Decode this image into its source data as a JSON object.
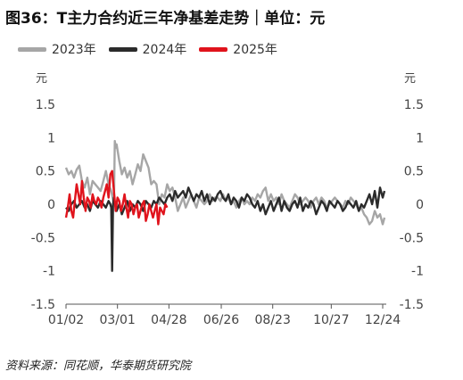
{
  "title": "图36：T主力合约近三年净基差走势｜单位：元",
  "source": "资料来源：同花顺，华泰期货研究院",
  "chart_data": {
    "type": "line",
    "y_unit_left": "元",
    "y_unit_right": "元",
    "ylim": [
      -1.5,
      1.5
    ],
    "y_ticks": [
      "1.5",
      "1",
      "0.5",
      "0",
      "-0.5",
      "-1",
      "-1.5"
    ],
    "y_tick_values": [
      1.5,
      1,
      0.5,
      0,
      -0.5,
      -1,
      -1.5
    ],
    "x_ticks": [
      "01/02",
      "03/01",
      "04/28",
      "06/26",
      "08/23",
      "10/27",
      "12/24"
    ],
    "x_tick_days": [
      0,
      58,
      116,
      175,
      233,
      299,
      357
    ],
    "x_range_days": [
      0,
      359
    ],
    "grid": false,
    "legend_position": "top-left",
    "series": [
      {
        "name": "2023年",
        "color": "#a6a6a6",
        "days": [
          0,
          3,
          6,
          9,
          12,
          15,
          18,
          21,
          24,
          27,
          30,
          33,
          36,
          39,
          42,
          45,
          48,
          51,
          54,
          55,
          56,
          57,
          60,
          63,
          66,
          69,
          72,
          75,
          78,
          81,
          84,
          87,
          90,
          93,
          96,
          99,
          102,
          105,
          108,
          111,
          114,
          117,
          120,
          123,
          126,
          129,
          132,
          135,
          138,
          141,
          144,
          147,
          150,
          153,
          156,
          159,
          162,
          165,
          168,
          171,
          174,
          177,
          180,
          183,
          186,
          189,
          192,
          195,
          198,
          201,
          204,
          207,
          210,
          213,
          216,
          219,
          222,
          225,
          228,
          231,
          234,
          237,
          240,
          243,
          246,
          249,
          252,
          255,
          258,
          261,
          264,
          267,
          270,
          273,
          276,
          279,
          282,
          285,
          288,
          291,
          294,
          297,
          300,
          303,
          306,
          309,
          312,
          315,
          318,
          321,
          324,
          327,
          330,
          333,
          336,
          339,
          342,
          345,
          348,
          351,
          354,
          357,
          359
        ],
        "values": [
          0.55,
          0.45,
          0.5,
          0.4,
          0.52,
          0.58,
          0.35,
          0.25,
          0.4,
          0.15,
          0.35,
          0.3,
          0.25,
          0.2,
          0.35,
          0.5,
          0.3,
          0.2,
          0.0,
          0.95,
          0.85,
          0.9,
          0.65,
          0.45,
          0.55,
          0.4,
          0.5,
          0.3,
          0.45,
          0.6,
          0.5,
          0.75,
          0.65,
          0.55,
          0.3,
          0.35,
          0.3,
          0.0,
          0.15,
          0.1,
          0.3,
          0.2,
          0.25,
          0.1,
          -0.1,
          0.0,
          0.1,
          -0.05,
          0.05,
          0.15,
          0.05,
          -0.05,
          0.1,
          0.05,
          0.0,
          0.05,
          0.15,
          0.05,
          0.1,
          0.1,
          0.05,
          0.15,
          0.05,
          0.1,
          0.0,
          0.05,
          -0.05,
          0.05,
          0.1,
          0.0,
          0.05,
          0.0,
          0.1,
          0.05,
          0.15,
          0.1,
          0.2,
          0.25,
          0.05,
          0.15,
          0.05,
          0.1,
          0.0,
          0.15,
          0.05,
          0.0,
          -0.05,
          0.05,
          0.15,
          0.1,
          0.0,
          0.05,
          0.1,
          0.05,
          -0.05,
          0.05,
          0.1,
          0.0,
          0.1,
          0.05,
          -0.05,
          0.0,
          0.05,
          0.1,
          0.05,
          0.0,
          -0.05,
          0.05,
          0.0,
          0.1,
          0.05,
          0.0,
          -0.1,
          -0.05,
          -0.15,
          -0.2,
          -0.3,
          -0.25,
          -0.1,
          -0.2,
          -0.15,
          -0.3,
          -0.2
        ]
      },
      {
        "name": "2024年",
        "color": "#2b2b2b",
        "days": [
          0,
          3,
          6,
          9,
          12,
          15,
          18,
          21,
          24,
          27,
          30,
          33,
          36,
          39,
          42,
          45,
          48,
          50,
          51,
          52,
          53,
          54,
          57,
          60,
          63,
          66,
          69,
          72,
          75,
          78,
          81,
          84,
          87,
          90,
          93,
          96,
          99,
          102,
          105,
          108,
          111,
          114,
          117,
          120,
          123,
          126,
          129,
          132,
          135,
          138,
          141,
          144,
          147,
          150,
          153,
          156,
          159,
          162,
          165,
          168,
          171,
          174,
          177,
          180,
          183,
          186,
          189,
          192,
          195,
          198,
          201,
          204,
          207,
          210,
          213,
          216,
          219,
          222,
          225,
          228,
          231,
          234,
          237,
          240,
          243,
          246,
          249,
          252,
          255,
          258,
          261,
          264,
          267,
          270,
          273,
          276,
          279,
          282,
          285,
          288,
          291,
          294,
          297,
          300,
          303,
          306,
          309,
          312,
          315,
          318,
          321,
          324,
          327,
          330,
          333,
          336,
          339,
          342,
          345,
          348,
          351,
          354,
          357,
          359
        ],
        "values": [
          -0.05,
          -0.1,
          0.0,
          0.05,
          -0.05,
          0.0,
          0.05,
          -0.05,
          0.0,
          -0.1,
          0.05,
          0.0,
          -0.05,
          0.05,
          0.0,
          -0.05,
          0.05,
          0.0,
          -0.05,
          -1.0,
          0.0,
          0.1,
          -0.1,
          0.0,
          -0.15,
          -0.05,
          0.05,
          -0.1,
          0.0,
          -0.05,
          0.05,
          0.0,
          -0.1,
          0.05,
          0.0,
          -0.05,
          0.05,
          0.0,
          0.1,
          0.05,
          0.0,
          0.1,
          0.15,
          0.05,
          0.2,
          0.1,
          0.15,
          0.2,
          0.1,
          0.25,
          0.15,
          0.05,
          0.15,
          0.1,
          0.2,
          0.05,
          0.15,
          0.0,
          0.1,
          0.05,
          0.15,
          0.2,
          0.1,
          0.05,
          0.15,
          0.0,
          0.1,
          0.05,
          -0.05,
          0.1,
          0.05,
          0.15,
          0.1,
          0.0,
          -0.05,
          0.05,
          -0.1,
          0.0,
          -0.15,
          -0.05,
          0.05,
          -0.1,
          0.0,
          0.1,
          -0.1,
          0.05,
          -0.05,
          -0.1,
          0.0,
          0.05,
          -0.05,
          0.1,
          -0.1,
          0.0,
          -0.05,
          0.05,
          0.0,
          -0.15,
          -0.05,
          0.05,
          0.0,
          -0.1,
          0.05,
          0.0,
          -0.05,
          0.05,
          0.0,
          -0.1,
          -0.05,
          0.05,
          0.0,
          -0.05,
          0.05,
          -0.1,
          0.0,
          -0.05,
          0.05,
          0.15,
          0.0,
          0.2,
          -0.05,
          0.25,
          0.1,
          0.2
        ]
      },
      {
        "name": "2025年",
        "color": "#e0131c",
        "days": [
          0,
          2,
          4,
          6,
          8,
          10,
          12,
          14,
          16,
          18,
          20,
          22,
          24,
          26,
          28,
          30,
          32,
          34,
          36,
          38,
          40,
          42,
          44,
          46,
          48,
          50,
          52,
          54,
          56,
          58,
          60,
          62,
          64,
          66,
          68,
          70,
          72,
          74,
          76,
          78,
          80,
          82,
          84,
          86,
          88,
          90,
          92,
          94,
          96,
          98,
          100,
          102,
          104,
          106,
          108,
          110,
          112,
          114
        ],
        "values": [
          -0.2,
          -0.05,
          0.15,
          -0.1,
          -0.2,
          0.05,
          0.3,
          0.15,
          0.0,
          0.35,
          0.1,
          -0.1,
          0.1,
          0.05,
          -0.05,
          0.15,
          0.05,
          0.0,
          0.1,
          0.05,
          -0.05,
          0.1,
          0.2,
          0.3,
          0.1,
          0.45,
          0.5,
          0.2,
          -0.1,
          0.1,
          0.05,
          -0.1,
          0.0,
          0.15,
          -0.05,
          -0.2,
          0.05,
          0.0,
          -0.15,
          -0.05,
          0.0,
          -0.2,
          -0.1,
          0.0,
          0.05,
          -0.25,
          -0.15,
          0.0,
          -0.1,
          -0.2,
          -0.1,
          0.0,
          -0.3,
          -0.05,
          -0.1,
          -0.15,
          0.0,
          -0.05
        ]
      }
    ]
  }
}
